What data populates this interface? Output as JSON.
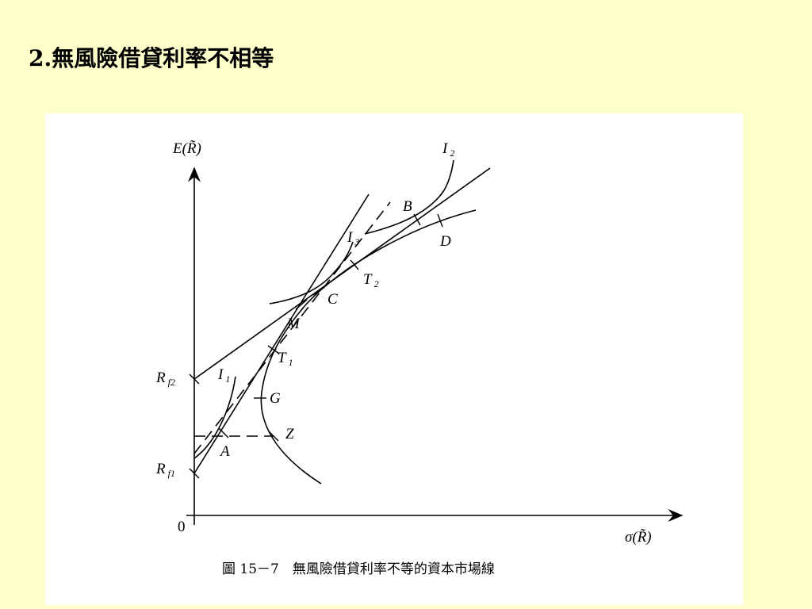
{
  "header": {
    "title": "2.無風險借貸利率不相等"
  },
  "figure": {
    "y_axis_label": "E(R̃)",
    "x_axis_label": "σ(R̃)",
    "origin_label": "0",
    "labels": [
      {
        "text": "I",
        "sub": "2"
      },
      {
        "text": "B"
      },
      {
        "text": "D"
      },
      {
        "text": "I",
        "sub": "3"
      },
      {
        "text": "T",
        "sub": "2"
      },
      {
        "text": "C"
      },
      {
        "text": "M"
      },
      {
        "text": "T",
        "sub": "1"
      },
      {
        "text": "R",
        "sub": "f2"
      },
      {
        "text": "I",
        "sub": "1"
      },
      {
        "text": "G"
      },
      {
        "text": "Z"
      },
      {
        "text": "A"
      },
      {
        "text": "R",
        "sub": "f1"
      }
    ],
    "caption": "圖 15－7　無風險借貸利率不等的資本市場線"
  }
}
